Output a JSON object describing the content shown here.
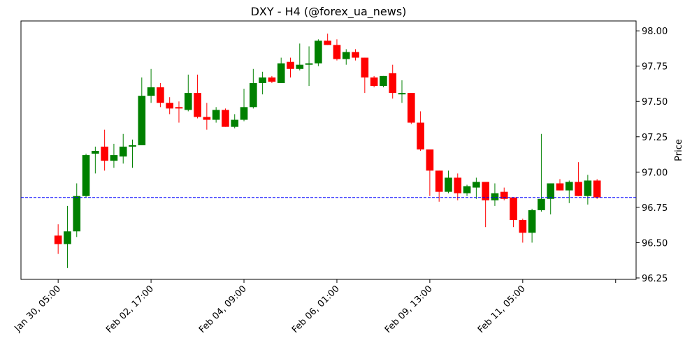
{
  "chart_data": {
    "type": "candlestick",
    "title": "DXY - H4 (@forex_ua_news)",
    "y_label": "Price",
    "open": [
      96.55,
      96.49,
      96.58,
      96.83,
      97.13,
      97.18,
      97.08,
      97.11,
      97.18,
      97.19,
      97.54,
      97.6,
      97.49,
      97.46,
      97.44,
      97.56,
      97.39,
      97.37,
      97.44,
      97.32,
      97.37,
      97.46,
      97.63,
      97.67,
      97.63,
      97.78,
      97.73,
      97.76,
      97.77,
      97.93,
      97.9,
      97.8,
      97.85,
      97.81,
      97.67,
      97.61,
      97.7,
      97.55,
      97.56,
      97.35,
      97.16,
      97.01,
      96.86,
      96.96,
      96.85,
      96.89,
      96.93,
      96.8,
      96.86,
      96.82,
      96.66,
      96.57,
      96.73,
      96.81,
      96.92,
      96.87,
      96.93,
      96.83,
      96.94
    ],
    "high": [
      96.63,
      96.76,
      96.92,
      97.13,
      97.18,
      97.3,
      97.2,
      97.27,
      97.23,
      97.67,
      97.73,
      97.63,
      97.53,
      97.5,
      97.69,
      97.69,
      97.49,
      97.46,
      97.45,
      97.41,
      97.59,
      97.73,
      97.71,
      97.68,
      97.81,
      97.81,
      97.91,
      97.89,
      97.94,
      97.98,
      97.94,
      97.87,
      97.87,
      97.81,
      97.68,
      97.68,
      97.76,
      97.65,
      97.56,
      97.43,
      97.16,
      97.01,
      97.01,
      96.99,
      96.91,
      96.96,
      96.93,
      96.92,
      96.89,
      96.82,
      96.67,
      96.74,
      97.27,
      96.92,
      96.95,
      96.94,
      97.07,
      96.98,
      96.95
    ],
    "low": [
      96.42,
      96.32,
      96.54,
      96.82,
      96.99,
      97.01,
      97.03,
      97.06,
      97.03,
      97.19,
      97.49,
      97.46,
      97.41,
      97.35,
      97.43,
      97.38,
      97.3,
      97.35,
      97.32,
      97.31,
      97.36,
      97.45,
      97.55,
      97.63,
      97.63,
      97.67,
      97.72,
      97.61,
      97.75,
      97.9,
      97.79,
      97.76,
      97.79,
      97.56,
      97.6,
      97.6,
      97.52,
      97.49,
      97.34,
      97.15,
      96.83,
      96.79,
      96.85,
      96.8,
      96.83,
      96.81,
      96.61,
      96.76,
      96.8,
      96.61,
      96.5,
      96.5,
      96.72,
      96.7,
      96.87,
      96.78,
      96.83,
      96.77,
      96.81
    ],
    "close": [
      96.49,
      96.58,
      96.83,
      97.12,
      97.15,
      97.08,
      97.12,
      97.18,
      97.19,
      97.54,
      97.6,
      97.49,
      97.45,
      97.45,
      97.56,
      97.39,
      97.37,
      97.44,
      97.32,
      97.37,
      97.46,
      97.63,
      97.67,
      97.64,
      97.77,
      97.73,
      97.76,
      97.77,
      97.93,
      97.9,
      97.8,
      97.85,
      97.81,
      97.67,
      97.61,
      97.68,
      97.56,
      97.56,
      97.35,
      97.16,
      97.01,
      96.86,
      96.96,
      96.85,
      96.9,
      96.93,
      96.8,
      96.85,
      96.81,
      96.66,
      96.57,
      96.73,
      96.81,
      96.92,
      96.87,
      96.93,
      96.83,
      96.94,
      96.82
    ],
    "up_color": "#008000",
    "down_color": "#ff0000",
    "reference_line": {
      "value": 96.82,
      "color": "#0000ff"
    },
    "xlim": [
      -4,
      62.2
    ],
    "ylim": [
      96.24,
      98.07
    ],
    "xticks": [
      {
        "value": 0,
        "label": "Jan 30, 05:00"
      },
      {
        "value": 10,
        "label": "Feb 02, 17:00"
      },
      {
        "value": 20,
        "label": "Feb 04, 09:00"
      },
      {
        "value": 30,
        "label": "Feb 06, 01:00"
      },
      {
        "value": 40,
        "label": "Feb 09, 13:00"
      },
      {
        "value": 50,
        "label": "Feb 11, 05:00"
      },
      {
        "value": 60,
        "label": null
      }
    ],
    "yticks": [
      {
        "value": 96.25,
        "label": "96.25"
      },
      {
        "value": 96.5,
        "label": "96.50"
      },
      {
        "value": 96.75,
        "label": "96.75"
      },
      {
        "value": 97,
        "label": "97.00"
      },
      {
        "value": 97.25,
        "label": "97.25"
      },
      {
        "value": 97.5,
        "label": "97.50"
      },
      {
        "value": 97.75,
        "label": "97.75"
      },
      {
        "value": 98,
        "label": "98.00"
      }
    ]
  }
}
